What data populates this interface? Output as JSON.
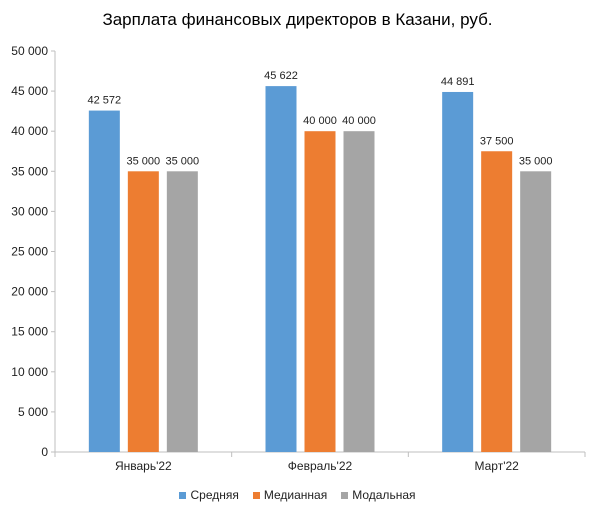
{
  "chart_data": {
    "type": "bar",
    "title": "Зарплата финансовых директоров в Казани, руб.",
    "xlabel": "",
    "ylabel": "",
    "categories": [
      "Январь'22",
      "Февраль'22",
      "Март'22"
    ],
    "series": [
      {
        "name": "Средняя",
        "color": "#5B9BD5",
        "values": [
          42572,
          45622,
          44891
        ],
        "labels": [
          "42 572",
          "45 622",
          "44 891"
        ]
      },
      {
        "name": "Медианная",
        "color": "#ED7D31",
        "values": [
          35000,
          40000,
          37500
        ],
        "labels": [
          "35 000",
          "40 000",
          "37 500"
        ]
      },
      {
        "name": "Модальная",
        "color": "#A5A5A5",
        "values": [
          35000,
          40000,
          35000
        ],
        "labels": [
          "35 000",
          "40 000",
          "35 000"
        ]
      }
    ],
    "ylim": [
      0,
      50000
    ],
    "yticks": [
      0,
      5000,
      10000,
      15000,
      20000,
      25000,
      30000,
      35000,
      40000,
      45000,
      50000
    ],
    "ytick_labels": [
      "0",
      "5 000",
      "10 000",
      "15 000",
      "20 000",
      "25 000",
      "30 000",
      "35 000",
      "40 000",
      "45 000",
      "50 000"
    ],
    "grid": false,
    "legend_position": "bottom"
  }
}
